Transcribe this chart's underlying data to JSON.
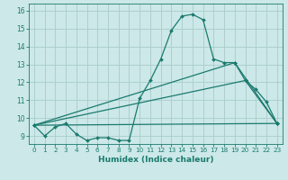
{
  "title": "",
  "xlabel": "Humidex (Indice chaleur)",
  "ylabel": "",
  "xlim": [
    -0.5,
    23.5
  ],
  "ylim": [
    8.55,
    16.4
  ],
  "yticks": [
    9,
    10,
    11,
    12,
    13,
    14,
    15,
    16
  ],
  "xticks": [
    0,
    1,
    2,
    3,
    4,
    5,
    6,
    7,
    8,
    9,
    10,
    11,
    12,
    13,
    14,
    15,
    16,
    17,
    18,
    19,
    20,
    21,
    22,
    23
  ],
  "xtick_labels": [
    "0",
    "1",
    "2",
    "3",
    "4",
    "5",
    "6",
    "7",
    "8",
    "9",
    "10",
    "11",
    "12",
    "13",
    "14",
    "15",
    "16",
    "17",
    "18",
    "19",
    "20",
    "21",
    "22",
    "23"
  ],
  "bg_color": "#cce8e8",
  "grid_color": "#aacccc",
  "line_color": "#1a7a6e",
  "line_width": 0.9,
  "marker": "D",
  "marker_size": 2.0,
  "series": [
    {
      "x": [
        0,
        1,
        2,
        3,
        4,
        5,
        6,
        7,
        8,
        9,
        10,
        11,
        12,
        13,
        14,
        15,
        16,
        17,
        18,
        19,
        20,
        21,
        22,
        23
      ],
      "y": [
        9.6,
        9.0,
        9.5,
        9.7,
        9.1,
        8.75,
        8.9,
        8.9,
        8.75,
        8.75,
        11.1,
        12.1,
        13.3,
        14.9,
        15.7,
        15.8,
        15.5,
        13.3,
        13.1,
        13.1,
        12.1,
        11.6,
        10.9,
        9.7
      ]
    },
    {
      "x": [
        0,
        23
      ],
      "y": [
        9.6,
        9.7
      ]
    },
    {
      "x": [
        0,
        20,
        23
      ],
      "y": [
        9.6,
        12.1,
        9.7
      ]
    },
    {
      "x": [
        0,
        19,
        23
      ],
      "y": [
        9.6,
        13.1,
        9.7
      ]
    }
  ]
}
